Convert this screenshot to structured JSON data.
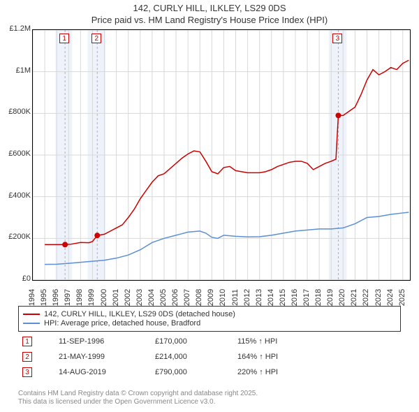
{
  "title_line1": "142, CURLY HILL, ILKLEY, LS29 0DS",
  "title_line2": "Price paid vs. HM Land Registry's House Price Index (HPI)",
  "title_fontsize": 13,
  "chart": {
    "type": "line",
    "background_color": "#ffffff",
    "frame_color": "#000000",
    "grid_color": "#d8d8d8",
    "x_axis": {
      "start_year": 1994,
      "end_year": 2025.6,
      "ticks": [
        1994,
        1995,
        1996,
        1997,
        1998,
        1999,
        2000,
        2001,
        2002,
        2003,
        2004,
        2005,
        2006,
        2007,
        2008,
        2009,
        2010,
        2011,
        2012,
        2013,
        2014,
        2015,
        2016,
        2017,
        2018,
        2019,
        2020,
        2021,
        2022,
        2023,
        2024,
        2025
      ],
      "label_fontsize": 11,
      "rotation": -90
    },
    "y_axis": {
      "ylim": [
        0,
        1200000
      ],
      "ticks": [
        {
          "v": 0,
          "label": "£0"
        },
        {
          "v": 200000,
          "label": "£200K"
        },
        {
          "v": 400000,
          "label": "£400K"
        },
        {
          "v": 600000,
          "label": "£600K"
        },
        {
          "v": 800000,
          "label": "£800K"
        },
        {
          "v": 1000000,
          "label": "£1M"
        },
        {
          "v": 1200000,
          "label": "£1.2M"
        }
      ],
      "label_fontsize": 11
    },
    "highlight_bands": [
      {
        "start": 1995.9,
        "end": 1997.3,
        "color": "#eef3fb"
      },
      {
        "start": 1998.6,
        "end": 2000.1,
        "color": "#eef3fb"
      },
      {
        "start": 2018.8,
        "end": 2020.3,
        "color": "#eef3fb"
      }
    ],
    "marker_dashed_lines": [
      {
        "x": 1996.7,
        "color": "#b0b0b0"
      },
      {
        "x": 1999.4,
        "color": "#b0b0b0"
      },
      {
        "x": 2019.6,
        "color": "#b0b0b0"
      }
    ],
    "marker_labels": [
      {
        "x": 1996.7,
        "n": "1"
      },
      {
        "x": 1999.4,
        "n": "2"
      },
      {
        "x": 2019.6,
        "n": "3"
      }
    ],
    "series_red": {
      "color": "#cc0000",
      "line_width": 1.5,
      "points": [
        [
          1995.0,
          170000
        ],
        [
          1996.0,
          170000
        ],
        [
          1996.7,
          170000
        ],
        [
          1997.2,
          172000
        ],
        [
          1998.0,
          180000
        ],
        [
          1998.7,
          179000
        ],
        [
          1999.0,
          185000
        ],
        [
          1999.4,
          214000
        ],
        [
          2000.0,
          220000
        ],
        [
          2000.5,
          235000
        ],
        [
          2001.0,
          250000
        ],
        [
          2001.5,
          265000
        ],
        [
          2002.0,
          300000
        ],
        [
          2002.5,
          340000
        ],
        [
          2003.0,
          390000
        ],
        [
          2003.5,
          430000
        ],
        [
          2004.0,
          470000
        ],
        [
          2004.5,
          500000
        ],
        [
          2005.0,
          510000
        ],
        [
          2005.5,
          535000
        ],
        [
          2006.0,
          560000
        ],
        [
          2006.5,
          585000
        ],
        [
          2007.0,
          605000
        ],
        [
          2007.5,
          620000
        ],
        [
          2008.0,
          615000
        ],
        [
          2008.5,
          570000
        ],
        [
          2009.0,
          520000
        ],
        [
          2009.5,
          510000
        ],
        [
          2010.0,
          540000
        ],
        [
          2010.5,
          545000
        ],
        [
          2011.0,
          525000
        ],
        [
          2011.5,
          520000
        ],
        [
          2012.0,
          515000
        ],
        [
          2012.5,
          515000
        ],
        [
          2013.0,
          515000
        ],
        [
          2013.5,
          520000
        ],
        [
          2014.0,
          530000
        ],
        [
          2014.5,
          545000
        ],
        [
          2015.0,
          555000
        ],
        [
          2015.5,
          565000
        ],
        [
          2016.0,
          570000
        ],
        [
          2016.5,
          570000
        ],
        [
          2017.0,
          560000
        ],
        [
          2017.5,
          530000
        ],
        [
          2018.0,
          545000
        ],
        [
          2018.5,
          560000
        ],
        [
          2019.0,
          570000
        ],
        [
          2019.4,
          580000
        ],
        [
          2019.6,
          790000
        ],
        [
          2020.0,
          790000
        ],
        [
          2020.5,
          810000
        ],
        [
          2021.0,
          830000
        ],
        [
          2021.5,
          890000
        ],
        [
          2022.0,
          960000
        ],
        [
          2022.5,
          1010000
        ],
        [
          2023.0,
          985000
        ],
        [
          2023.5,
          1000000
        ],
        [
          2024.0,
          1020000
        ],
        [
          2024.5,
          1010000
        ],
        [
          2025.0,
          1040000
        ],
        [
          2025.5,
          1055000
        ]
      ],
      "markers": [
        {
          "x": 1996.7,
          "y": 170000
        },
        {
          "x": 1999.4,
          "y": 214000
        },
        {
          "x": 2019.6,
          "y": 790000
        }
      ]
    },
    "series_blue": {
      "color": "#5b8fd6",
      "line_width": 1.5,
      "points": [
        [
          1995.0,
          75000
        ],
        [
          1996.0,
          76000
        ],
        [
          1997.0,
          80000
        ],
        [
          1998.0,
          85000
        ],
        [
          1999.0,
          90000
        ],
        [
          2000.0,
          95000
        ],
        [
          2001.0,
          105000
        ],
        [
          2002.0,
          120000
        ],
        [
          2003.0,
          145000
        ],
        [
          2004.0,
          180000
        ],
        [
          2005.0,
          200000
        ],
        [
          2006.0,
          215000
        ],
        [
          2007.0,
          230000
        ],
        [
          2008.0,
          235000
        ],
        [
          2008.5,
          225000
        ],
        [
          2009.0,
          205000
        ],
        [
          2009.5,
          200000
        ],
        [
          2010.0,
          215000
        ],
        [
          2011.0,
          210000
        ],
        [
          2012.0,
          207000
        ],
        [
          2013.0,
          208000
        ],
        [
          2014.0,
          215000
        ],
        [
          2015.0,
          225000
        ],
        [
          2016.0,
          235000
        ],
        [
          2017.0,
          240000
        ],
        [
          2018.0,
          245000
        ],
        [
          2019.0,
          245000
        ],
        [
          2020.0,
          250000
        ],
        [
          2021.0,
          270000
        ],
        [
          2022.0,
          300000
        ],
        [
          2023.0,
          305000
        ],
        [
          2024.0,
          315000
        ],
        [
          2025.0,
          322000
        ],
        [
          2025.5,
          325000
        ]
      ]
    }
  },
  "legend": {
    "items": [
      {
        "color": "#cc0000",
        "label": "142, CURLY HILL, ILKLEY, LS29 0DS (detached house)"
      },
      {
        "color": "#5b8fd6",
        "label": "HPI: Average price, detached house, Bradford"
      }
    ]
  },
  "transactions": [
    {
      "n": "1",
      "date": "11-SEP-1996",
      "price": "£170,000",
      "pct": "115% ↑ HPI"
    },
    {
      "n": "2",
      "date": "21-MAY-1999",
      "price": "£214,000",
      "pct": "164% ↑ HPI"
    },
    {
      "n": "3",
      "date": "14-AUG-2019",
      "price": "£790,000",
      "pct": "220% ↑ HPI"
    }
  ],
  "footer_line1": "Contains HM Land Registry data © Crown copyright and database right 2025.",
  "footer_line2": "This data is licensed under the Open Government Licence v3.0."
}
